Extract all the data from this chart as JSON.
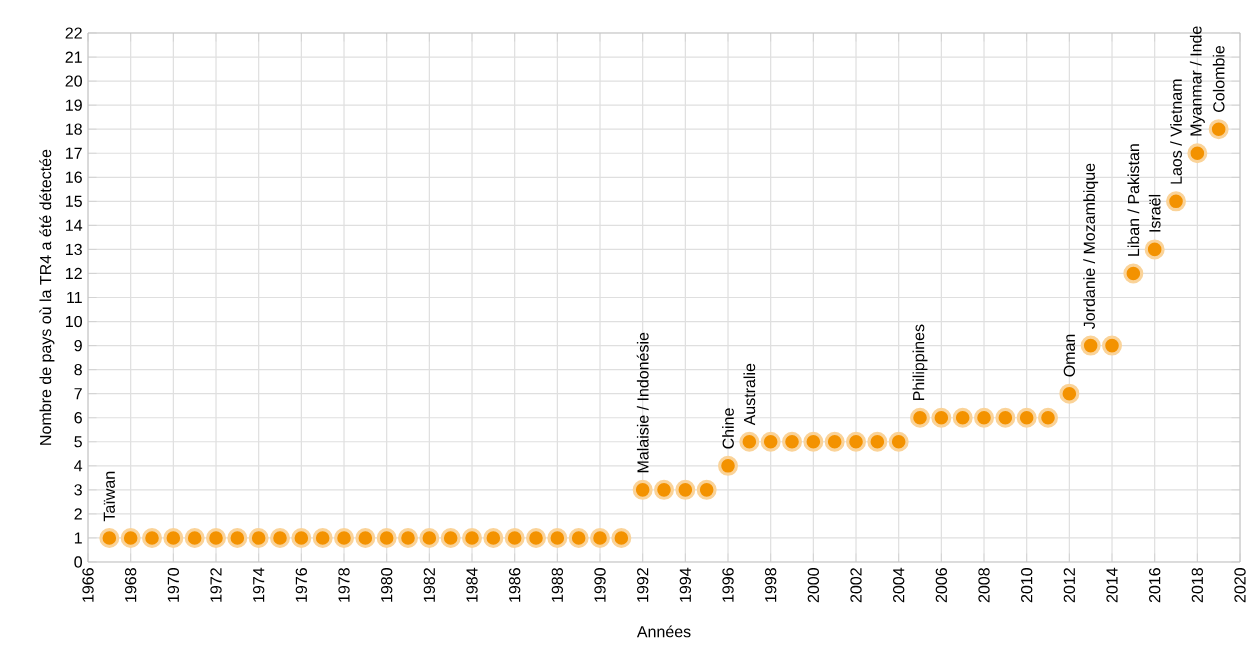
{
  "chart_data": {
    "type": "scatter",
    "xlabel": "Années",
    "ylabel": "Nombre de pays où la TR4 a été détectée",
    "x": [
      1967,
      1968,
      1969,
      1970,
      1971,
      1972,
      1973,
      1974,
      1975,
      1976,
      1977,
      1978,
      1979,
      1980,
      1981,
      1982,
      1983,
      1984,
      1985,
      1986,
      1987,
      1988,
      1989,
      1990,
      1991,
      1992,
      1993,
      1994,
      1995,
      1996,
      1997,
      1998,
      1999,
      2000,
      2001,
      2002,
      2003,
      2004,
      2005,
      2006,
      2007,
      2008,
      2009,
      2010,
      2011,
      2012,
      2013,
      2014,
      2015,
      2016,
      2017,
      2018,
      2019
    ],
    "values": [
      1,
      1,
      1,
      1,
      1,
      1,
      1,
      1,
      1,
      1,
      1,
      1,
      1,
      1,
      1,
      1,
      1,
      1,
      1,
      1,
      1,
      1,
      1,
      1,
      1,
      3,
      3,
      3,
      3,
      4,
      5,
      5,
      5,
      5,
      5,
      5,
      5,
      5,
      6,
      6,
      6,
      6,
      6,
      6,
      6,
      7,
      9,
      9,
      12,
      13,
      15,
      17,
      18
    ],
    "color": "#f39200",
    "marker": "circle",
    "grid": true,
    "xlim": [
      1966,
      2020
    ],
    "xticks": [
      1966,
      1968,
      1970,
      1972,
      1974,
      1976,
      1978,
      1980,
      1982,
      1984,
      1986,
      1988,
      1990,
      1992,
      1994,
      1996,
      1998,
      2000,
      2002,
      2004,
      2006,
      2008,
      2010,
      2012,
      2014,
      2016,
      2018,
      2020
    ],
    "ylim": [
      0,
      22
    ],
    "yticks": [
      0,
      1,
      2,
      3,
      4,
      5,
      6,
      7,
      8,
      9,
      10,
      11,
      12,
      13,
      14,
      15,
      16,
      17,
      18,
      19,
      20,
      21,
      22
    ],
    "annotations": [
      {
        "text": "Taïwan",
        "x": 1967,
        "y": 1
      },
      {
        "text": "Malaisie / Indonésie",
        "x": 1992,
        "y": 3
      },
      {
        "text": "Chine",
        "x": 1996,
        "y": 4
      },
      {
        "text": "Australie",
        "x": 1997,
        "y": 5
      },
      {
        "text": "Philippines",
        "x": 2005,
        "y": 6
      },
      {
        "text": "Oman",
        "x": 2012,
        "y": 7
      },
      {
        "text": "Jordanie / Mozambique",
        "x": 2013,
        "y": 9
      },
      {
        "text": "Liban / Pakistan",
        "x": 2015,
        "y": 12
      },
      {
        "text": "Israël",
        "x": 2016,
        "y": 13
      },
      {
        "text": "Laos / Vietnam",
        "x": 2017,
        "y": 15
      },
      {
        "text": "Myanmar / Inde",
        "x": 2018,
        "y": 17
      },
      {
        "text": "Colombie",
        "x": 2019,
        "y": 18
      }
    ]
  }
}
